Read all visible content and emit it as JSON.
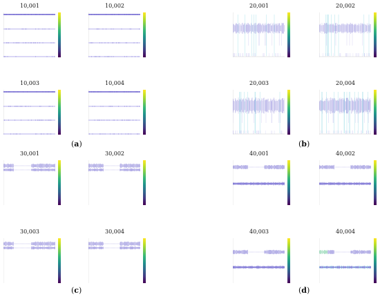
{
  "figure": {
    "panels": [
      {
        "letter": "a",
        "plots": [
          "10,001",
          "10,002",
          "10,003",
          "10,004"
        ]
      },
      {
        "letter": "b",
        "plots": [
          "20,001",
          "20,002",
          "20,003",
          "20,004"
        ]
      },
      {
        "letter": "c",
        "plots": [
          "30,001",
          "30,002",
          "30,003",
          "30,004"
        ]
      },
      {
        "letter": "d",
        "plots": [
          "40,001",
          "40,002",
          "40,003",
          "40,004"
        ]
      }
    ]
  },
  "colors": {
    "trace": "#4b3fc4",
    "trace_light": "#9b95e6",
    "trace_cyan": "#56c4d6",
    "trace_green": "#3cb878"
  }
}
